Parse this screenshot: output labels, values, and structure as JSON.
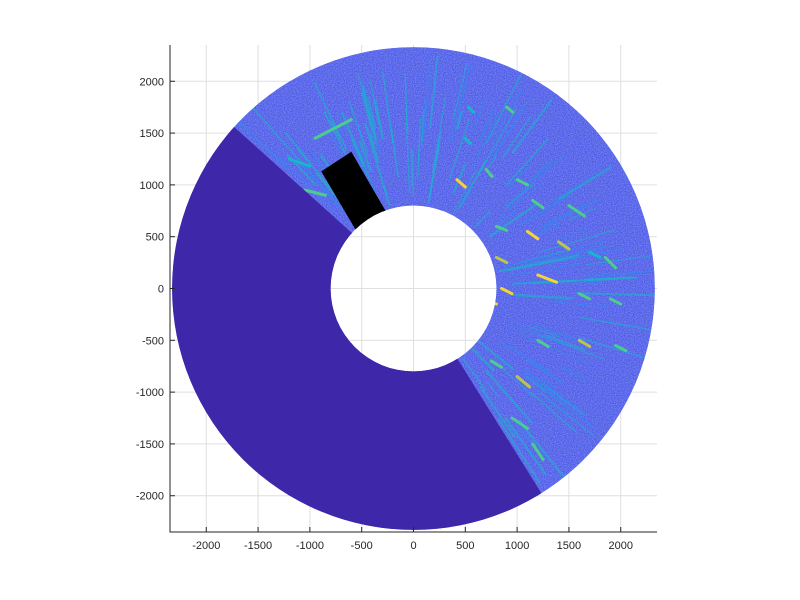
{
  "chart_data": {
    "type": "heatmap",
    "subtype": "polar-sector-scan",
    "title": "",
    "xlabel": "",
    "ylabel": "",
    "xlim": [
      -2350,
      2350
    ],
    "ylim": [
      -2350,
      2350
    ],
    "x_ticks": [
      -2000,
      -1500,
      -1000,
      -500,
      0,
      500,
      1000,
      1500,
      2000
    ],
    "y_ticks": [
      2000,
      1500,
      1000,
      500,
      0,
      -500,
      -1000,
      -1500,
      -2000
    ],
    "x_tick_labels": [
      "-2000",
      "-1500",
      "-1000",
      "-500",
      "0",
      "500",
      "1000",
      "1500",
      "2000"
    ],
    "y_tick_labels": [
      "2000",
      "1500",
      "1000",
      "500",
      "0",
      "-500",
      "-1000",
      "-1500",
      "-2000"
    ],
    "grid": true,
    "inner_radius": 800,
    "outer_radius": 2330,
    "colormap": [
      "#3e26a8",
      "#4347e2",
      "#2c8cf0",
      "#14b9c9",
      "#4bcd8c",
      "#b9c64a",
      "#f7d336",
      "#f9fb15"
    ],
    "background_level_color": "#4a55e6",
    "no_data_sector": {
      "from_angle_deg": 138,
      "to_angle_deg": 302,
      "value_color": "#3e28a9"
    },
    "blanked_region": {
      "color": "#000000",
      "corners": [
        [
          -890,
          1130
        ],
        [
          -600,
          1320
        ],
        [
          -270,
          750
        ],
        [
          -560,
          570
        ]
      ]
    },
    "returns": [
      {
        "x": -950,
        "y": 1450,
        "x2": -600,
        "y2": 1630,
        "level": 0.55
      },
      {
        "x": -1200,
        "y": 1250,
        "x2": -1000,
        "y2": 1180,
        "level": 0.45
      },
      {
        "x": -1050,
        "y": 950,
        "x2": -850,
        "y2": 900,
        "level": 0.55
      },
      {
        "x": -1350,
        "y": 1180,
        "x2": -1200,
        "y2": 950,
        "level": 0.4
      },
      {
        "x": 420,
        "y": 1050,
        "x2": 500,
        "y2": 980,
        "level": 0.85
      },
      {
        "x": 700,
        "y": 1150,
        "x2": 760,
        "y2": 1080,
        "level": 0.6
      },
      {
        "x": 1000,
        "y": 1050,
        "x2": 1100,
        "y2": 1000,
        "level": 0.5
      },
      {
        "x": 1100,
        "y": 550,
        "x2": 1200,
        "y2": 480,
        "level": 0.8
      },
      {
        "x": 1200,
        "y": 130,
        "x2": 1380,
        "y2": 60,
        "level": 0.9
      },
      {
        "x": 1400,
        "y": 450,
        "x2": 1500,
        "y2": 380,
        "level": 0.75
      },
      {
        "x": 800,
        "y": 300,
        "x2": 900,
        "y2": 250,
        "level": 0.7
      },
      {
        "x": 850,
        "y": 0,
        "x2": 950,
        "y2": -50,
        "level": 0.8
      },
      {
        "x": 700,
        "y": -100,
        "x2": 800,
        "y2": -150,
        "level": 0.85
      },
      {
        "x": 1600,
        "y": -50,
        "x2": 1700,
        "y2": -100,
        "level": 0.6
      },
      {
        "x": 1600,
        "y": -500,
        "x2": 1700,
        "y2": -560,
        "level": 0.75
      },
      {
        "x": 1950,
        "y": -550,
        "x2": 2050,
        "y2": -600,
        "level": 0.6
      },
      {
        "x": 1900,
        "y": -100,
        "x2": 2000,
        "y2": -150,
        "level": 0.55
      },
      {
        "x": 1000,
        "y": -850,
        "x2": 1120,
        "y2": -950,
        "level": 0.65
      },
      {
        "x": 950,
        "y": -1250,
        "x2": 1100,
        "y2": -1350,
        "level": 0.5
      },
      {
        "x": 1150,
        "y": -1500,
        "x2": 1250,
        "y2": -1650,
        "level": 0.5
      },
      {
        "x": 1500,
        "y": 800,
        "x2": 1650,
        "y2": 700,
        "level": 0.55
      },
      {
        "x": 1700,
        "y": 350,
        "x2": 1800,
        "y2": 300,
        "level": 0.45
      },
      {
        "x": 1850,
        "y": 300,
        "x2": 1950,
        "y2": 200,
        "level": 0.5
      },
      {
        "x": 1200,
        "y": -500,
        "x2": 1300,
        "y2": -560,
        "level": 0.5
      },
      {
        "x": 800,
        "y": 600,
        "x2": 900,
        "y2": 560,
        "level": 0.6
      },
      {
        "x": 900,
        "y": 1750,
        "x2": 960,
        "y2": 1700,
        "level": 0.5
      },
      {
        "x": 500,
        "y": 1450,
        "x2": 550,
        "y2": 1400,
        "level": 0.45
      },
      {
        "x": 530,
        "y": 1750,
        "x2": 580,
        "y2": 1700,
        "level": 0.45
      },
      {
        "x": 1150,
        "y": 850,
        "x2": 1250,
        "y2": 780,
        "level": 0.5
      },
      {
        "x": 750,
        "y": -700,
        "x2": 850,
        "y2": -760,
        "level": 0.6
      }
    ]
  }
}
